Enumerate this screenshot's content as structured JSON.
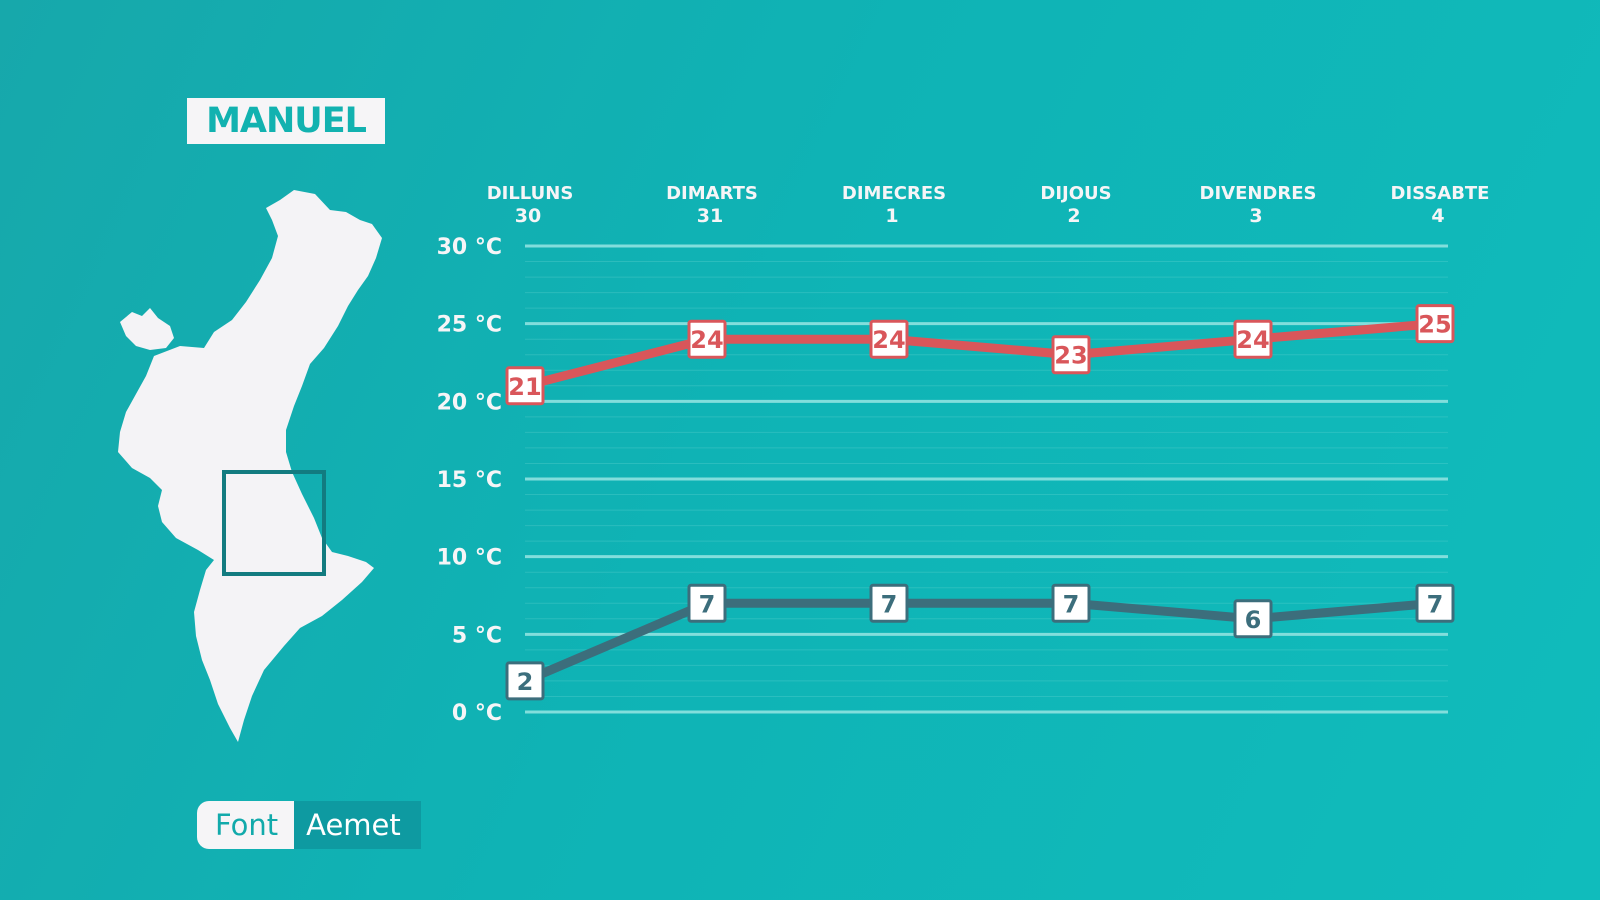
{
  "station": "MANUEL",
  "source": {
    "label": "Font",
    "value": "Aemet"
  },
  "colors": {
    "max_series": "#d9565a",
    "min_series": "#3c6e7c",
    "grid": "#8fe2e0",
    "text": "#f6f5f7",
    "map": "#f4f3f6",
    "marker_frame": "#127b80"
  },
  "chart_data": {
    "type": "line",
    "categories": [
      {
        "day": "DILLUNS",
        "date": "30"
      },
      {
        "day": "DIMARTS",
        "date": "31"
      },
      {
        "day": "DIMECRES",
        "date": "1"
      },
      {
        "day": "DIJOUS",
        "date": "2"
      },
      {
        "day": "DIVENDRES",
        "date": "3"
      },
      {
        "day": "DISSABTE",
        "date": "4"
      }
    ],
    "y_ticks": [
      {
        "value": 30,
        "label": "30 °C"
      },
      {
        "value": 25,
        "label": "25 °C"
      },
      {
        "value": 20,
        "label": "20 °C"
      },
      {
        "value": 15,
        "label": "15 °C"
      },
      {
        "value": 10,
        "label": "10 °C"
      },
      {
        "value": 5,
        "label": "5 °C"
      },
      {
        "value": 0,
        "label": "0 °C"
      }
    ],
    "ylim": [
      0,
      30
    ],
    "series": [
      {
        "values": [
          21,
          24,
          24,
          23,
          24,
          25
        ],
        "color": "#d9565a"
      },
      {
        "values": [
          2,
          7,
          7,
          7,
          6,
          7
        ],
        "color": "#3c6e7c"
      }
    ],
    "grid": true,
    "legend": "none"
  }
}
